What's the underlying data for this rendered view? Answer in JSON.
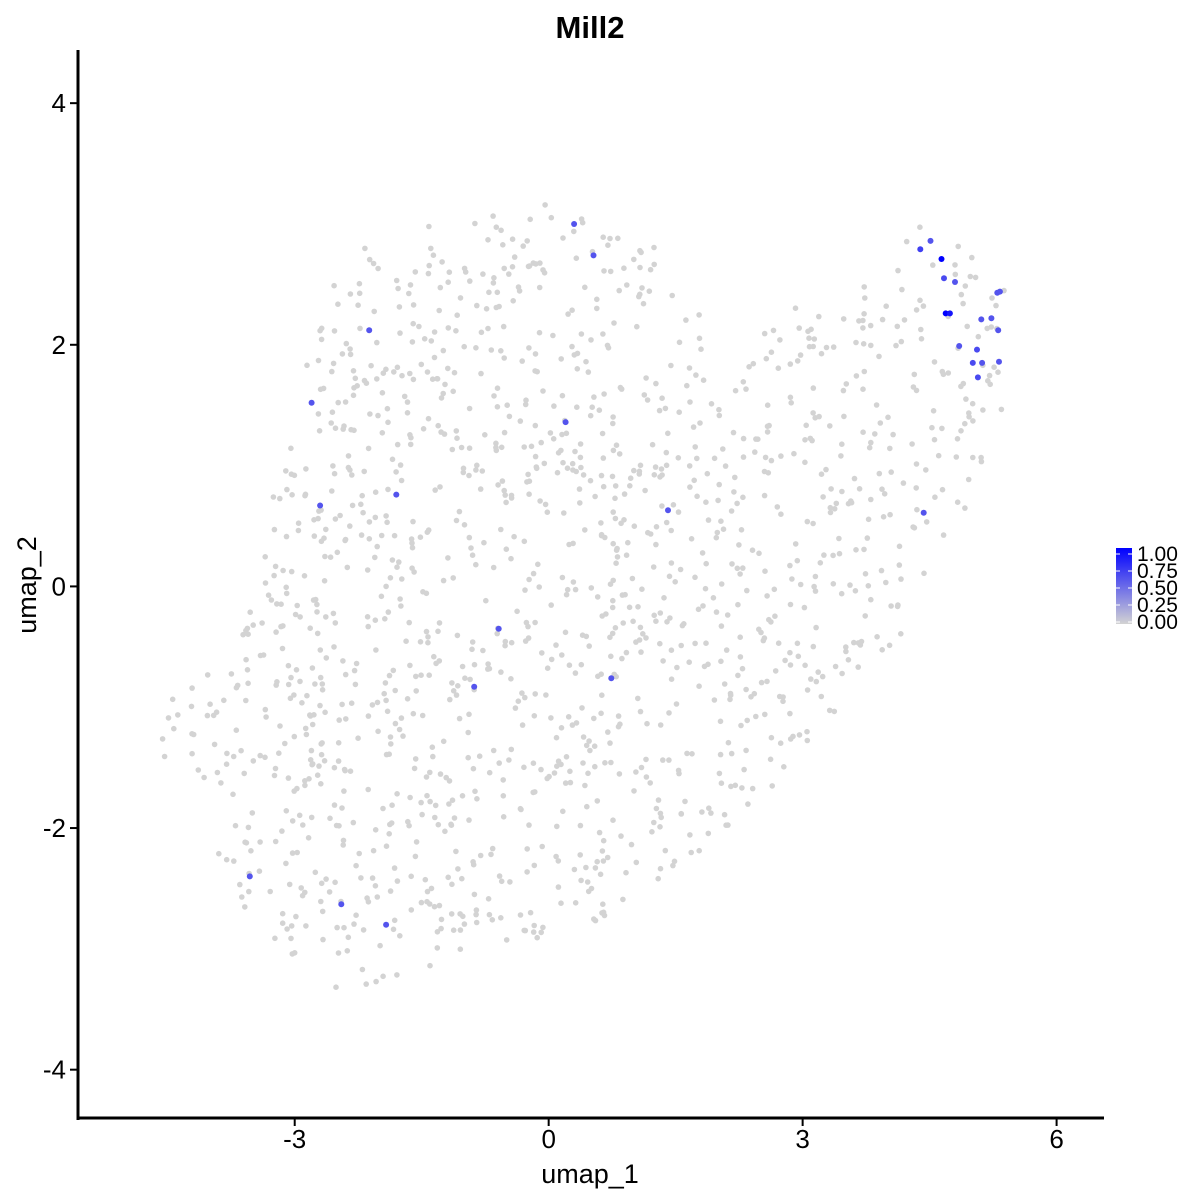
{
  "chart_data": {
    "type": "scatter",
    "title": "Mill2",
    "xlabel": "umap_1",
    "ylabel": "umap_2",
    "xlim": [
      -5.56,
      6.56
    ],
    "ylim": [
      -4.4,
      4.44
    ],
    "x_ticks": [
      -3,
      0,
      3,
      6
    ],
    "x_tick_labels": [
      "-3",
      "0",
      "3",
      "6"
    ],
    "y_ticks": [
      -4,
      -2,
      0,
      2,
      4
    ],
    "y_tick_labels": [
      "-4",
      "-2",
      "0",
      "2",
      "4"
    ],
    "grid": false,
    "legend": {
      "placement": "right",
      "type": "colorbar",
      "labels": [
        "1.00",
        "0.75",
        "0.50",
        "0.25",
        "0.00"
      ],
      "values": [
        1.0,
        0.75,
        0.5,
        0.25,
        0.0
      ],
      "low_color": "#d3d3d3",
      "high_color": "#0000ff"
    },
    "colors": {
      "low": "#d3d3d3",
      "high": "#0000ff"
    },
    "expressing_cells": [
      {
        "x": 0.3,
        "y": 3.0,
        "value": 0.6
      },
      {
        "x": 0.53,
        "y": 2.74,
        "value": 0.6
      },
      {
        "x": 4.39,
        "y": 2.79,
        "value": 0.7
      },
      {
        "x": 4.51,
        "y": 2.86,
        "value": 0.6
      },
      {
        "x": 4.64,
        "y": 2.71,
        "value": 1.0
      },
      {
        "x": 4.67,
        "y": 2.55,
        "value": 0.65
      },
      {
        "x": 4.8,
        "y": 2.52,
        "value": 0.6
      },
      {
        "x": 4.69,
        "y": 2.26,
        "value": 1.0
      },
      {
        "x": 4.74,
        "y": 2.26,
        "value": 0.9
      },
      {
        "x": 4.85,
        "y": 1.99,
        "value": 0.6
      },
      {
        "x": 5.01,
        "y": 1.85,
        "value": 0.65
      },
      {
        "x": 5.06,
        "y": 1.96,
        "value": 0.65
      },
      {
        "x": 5.07,
        "y": 1.73,
        "value": 0.65
      },
      {
        "x": 5.11,
        "y": 2.21,
        "value": 0.6
      },
      {
        "x": 5.12,
        "y": 1.85,
        "value": 0.6
      },
      {
        "x": 5.23,
        "y": 2.22,
        "value": 0.6
      },
      {
        "x": 5.3,
        "y": 2.43,
        "value": 0.6
      },
      {
        "x": 5.33,
        "y": 2.44,
        "value": 0.6
      },
      {
        "x": 5.31,
        "y": 2.12,
        "value": 0.6
      },
      {
        "x": 5.32,
        "y": 1.86,
        "value": 0.6
      },
      {
        "x": -2.12,
        "y": 2.12,
        "value": 0.6
      },
      {
        "x": -2.8,
        "y": 1.52,
        "value": 0.6
      },
      {
        "x": 0.2,
        "y": 1.36,
        "value": 0.6
      },
      {
        "x": -1.8,
        "y": 0.76,
        "value": 0.6
      },
      {
        "x": -2.7,
        "y": 0.67,
        "value": 0.6
      },
      {
        "x": 1.41,
        "y": 0.63,
        "value": 0.6
      },
      {
        "x": 4.43,
        "y": 0.61,
        "value": 0.6
      },
      {
        "x": -0.59,
        "y": -0.35,
        "value": 0.6
      },
      {
        "x": -0.88,
        "y": -0.83,
        "value": 0.6
      },
      {
        "x": 0.74,
        "y": -0.76,
        "value": 0.6
      },
      {
        "x": -3.53,
        "y": -2.4,
        "value": 0.6
      },
      {
        "x": -2.45,
        "y": -2.63,
        "value": 0.6
      },
      {
        "x": -1.92,
        "y": -2.8,
        "value": 0.6
      }
    ]
  }
}
